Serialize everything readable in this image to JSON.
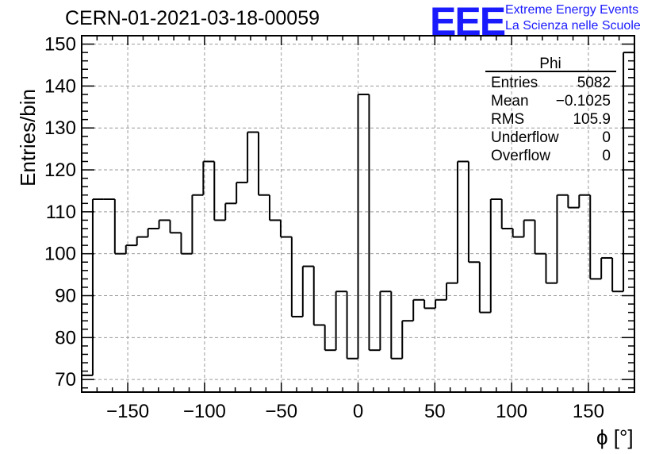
{
  "header": {
    "title": "CERN-01-2021-03-18-00059",
    "logo_text": "EEE",
    "logo_line1": "Extreme Energy Events",
    "logo_line2": "La Scienza nelle Scuole"
  },
  "colors": {
    "logo": "#1a1aff",
    "line": "#000000",
    "grid": "#9a9a9a"
  },
  "stats": {
    "title": "Phi",
    "rows": [
      {
        "label": "Entries",
        "value": "5082"
      },
      {
        "label": "Mean",
        "value": "−0.1025"
      },
      {
        "label": "RMS",
        "value": "105.9"
      },
      {
        "label": "Underflow",
        "value": "0"
      },
      {
        "label": "Overflow",
        "value": "0"
      }
    ]
  },
  "chart_data": {
    "type": "histogram",
    "xlabel": "ϕ [°]",
    "ylabel": "Entries/bin",
    "xlim": [
      -180,
      180
    ],
    "ylim": [
      67,
      152
    ],
    "bin_width": 7.2,
    "grid": true,
    "xticks": [
      -150,
      -100,
      -50,
      0,
      50,
      100,
      150
    ],
    "xtick_labels": [
      "−150",
      "−100",
      "−50",
      "0",
      "50",
      "100",
      "150"
    ],
    "yticks": [
      70,
      80,
      90,
      100,
      110,
      120,
      130,
      140,
      150
    ],
    "ytick_labels": [
      "70",
      "80",
      "90",
      "100",
      "110",
      "120",
      "130",
      "140",
      "150"
    ],
    "values": [
      71,
      113,
      113,
      100,
      102,
      104,
      106,
      108,
      105,
      100,
      114,
      122,
      108,
      112,
      117,
      129,
      114,
      108,
      104,
      85,
      97,
      83,
      77,
      91,
      75,
      138,
      77,
      91,
      75,
      84,
      89,
      87,
      89,
      93,
      122,
      98,
      86,
      113,
      106,
      104,
      108,
      100,
      93,
      114,
      111,
      114,
      94,
      99,
      91,
      148
    ]
  }
}
